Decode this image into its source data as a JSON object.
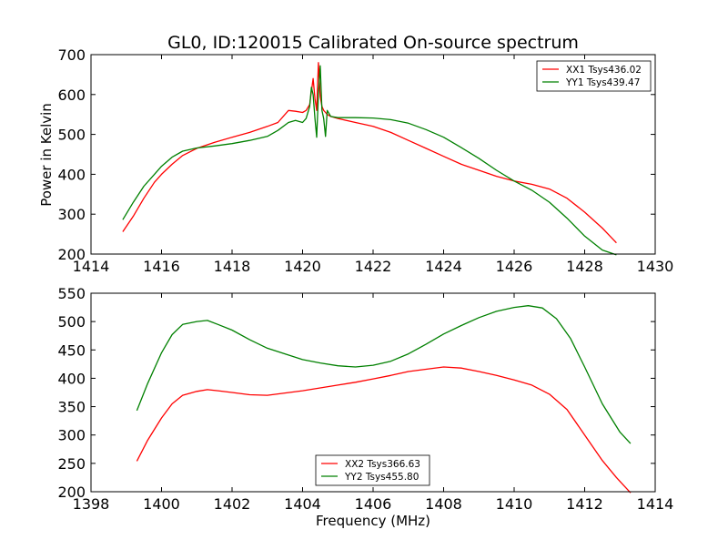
{
  "figure": {
    "title": "GL0, ID:120015 Calibrated On-source spectrum",
    "ylabel": "Power in Kelvin",
    "xlabel": "Frequency (MHz)"
  },
  "chart_data": [
    {
      "type": "line",
      "title": "GL0, ID:120015 Calibrated On-source spectrum",
      "xlabel": "",
      "ylabel": "Power in Kelvin",
      "xlim": [
        1414,
        1430
      ],
      "ylim": [
        200,
        700
      ],
      "xticks": [
        1414,
        1416,
        1418,
        1420,
        1422,
        1424,
        1426,
        1428,
        1430
      ],
      "yticks": [
        200,
        300,
        400,
        500,
        600,
        700
      ],
      "grid": false,
      "legend": "top-right",
      "series": [
        {
          "name": "XX1 Tsys436.02",
          "color": "#ff0000",
          "x": [
            1414.9,
            1415.2,
            1415.5,
            1415.8,
            1416.0,
            1416.3,
            1416.6,
            1417.0,
            1417.5,
            1418.0,
            1418.5,
            1419.0,
            1419.3,
            1419.6,
            1419.8,
            1420.0,
            1420.1,
            1420.2,
            1420.3,
            1420.35,
            1420.4,
            1420.45,
            1420.5,
            1420.55,
            1420.6,
            1420.65,
            1420.7,
            1420.8,
            1421.0,
            1421.5,
            1422.0,
            1422.5,
            1423.0,
            1423.5,
            1424.0,
            1424.5,
            1425.0,
            1425.5,
            1426.0,
            1426.5,
            1427.0,
            1427.5,
            1428.0,
            1428.5,
            1428.9
          ],
          "y": [
            256,
            295,
            340,
            380,
            400,
            425,
            447,
            465,
            480,
            493,
            505,
            520,
            530,
            560,
            558,
            555,
            560,
            575,
            640,
            590,
            560,
            680,
            595,
            570,
            560,
            555,
            550,
            545,
            540,
            530,
            520,
            505,
            485,
            465,
            445,
            425,
            410,
            395,
            383,
            375,
            363,
            340,
            305,
            265,
            228
          ]
        },
        {
          "name": "YY1 Tsys439.47",
          "color": "#008000",
          "x": [
            1414.9,
            1415.2,
            1415.5,
            1415.8,
            1416.0,
            1416.3,
            1416.6,
            1417.0,
            1417.5,
            1418.0,
            1418.5,
            1419.0,
            1419.3,
            1419.6,
            1419.8,
            1420.0,
            1420.1,
            1420.2,
            1420.25,
            1420.3,
            1420.35,
            1420.4,
            1420.45,
            1420.5,
            1420.55,
            1420.6,
            1420.65,
            1420.7,
            1420.8,
            1421.0,
            1421.5,
            1422.0,
            1422.5,
            1423.0,
            1423.5,
            1424.0,
            1424.5,
            1425.0,
            1425.5,
            1426.0,
            1426.5,
            1427.0,
            1427.5,
            1428.0,
            1428.5,
            1428.9
          ],
          "y": [
            286,
            330,
            370,
            400,
            420,
            443,
            458,
            466,
            471,
            477,
            485,
            495,
            510,
            530,
            535,
            530,
            540,
            570,
            618,
            600,
            540,
            493,
            600,
            672,
            560,
            540,
            495,
            560,
            545,
            542,
            542,
            541,
            537,
            528,
            512,
            493,
            467,
            440,
            410,
            383,
            360,
            330,
            290,
            245,
            210,
            198
          ]
        }
      ]
    },
    {
      "type": "line",
      "title": "",
      "xlabel": "Frequency (MHz)",
      "ylabel": "",
      "xlim": [
        1398,
        1414
      ],
      "ylim": [
        200,
        550
      ],
      "xticks": [
        1398,
        1400,
        1402,
        1404,
        1406,
        1408,
        1410,
        1412,
        1414
      ],
      "yticks": [
        200,
        250,
        300,
        350,
        400,
        450,
        500,
        550
      ],
      "grid": false,
      "legend": "bottom-center",
      "series": [
        {
          "name": "XX2 Tsys366.63",
          "color": "#ff0000",
          "x": [
            1399.3,
            1399.6,
            1400.0,
            1400.3,
            1400.6,
            1401.0,
            1401.3,
            1401.6,
            1402.0,
            1402.5,
            1403.0,
            1403.5,
            1404.0,
            1404.5,
            1405.0,
            1405.5,
            1406.0,
            1406.5,
            1407.0,
            1407.5,
            1408.0,
            1408.5,
            1409.0,
            1409.5,
            1410.0,
            1410.5,
            1411.0,
            1411.5,
            1412.0,
            1412.5,
            1412.9,
            1413.3
          ],
          "y": [
            254,
            290,
            330,
            355,
            370,
            377,
            380,
            378,
            375,
            371,
            370,
            374,
            378,
            383,
            388,
            393,
            399,
            405,
            412,
            416,
            420,
            418,
            412,
            405,
            397,
            388,
            372,
            345,
            300,
            255,
            225,
            198
          ]
        },
        {
          "name": "YY2 Tsys455.80",
          "color": "#008000",
          "x": [
            1399.3,
            1399.6,
            1400.0,
            1400.3,
            1400.6,
            1401.0,
            1401.3,
            1401.6,
            1402.0,
            1402.5,
            1403.0,
            1403.5,
            1404.0,
            1404.5,
            1405.0,
            1405.5,
            1406.0,
            1406.5,
            1407.0,
            1407.5,
            1408.0,
            1408.5,
            1409.0,
            1409.5,
            1410.0,
            1410.4,
            1410.8,
            1411.2,
            1411.6,
            1412.0,
            1412.5,
            1413.0,
            1413.3
          ],
          "y": [
            343,
            390,
            445,
            477,
            495,
            500,
            502,
            495,
            485,
            468,
            453,
            443,
            433,
            427,
            422,
            420,
            423,
            430,
            443,
            460,
            478,
            493,
            507,
            518,
            525,
            528,
            524,
            505,
            470,
            420,
            355,
            305,
            285
          ]
        }
      ]
    }
  ]
}
